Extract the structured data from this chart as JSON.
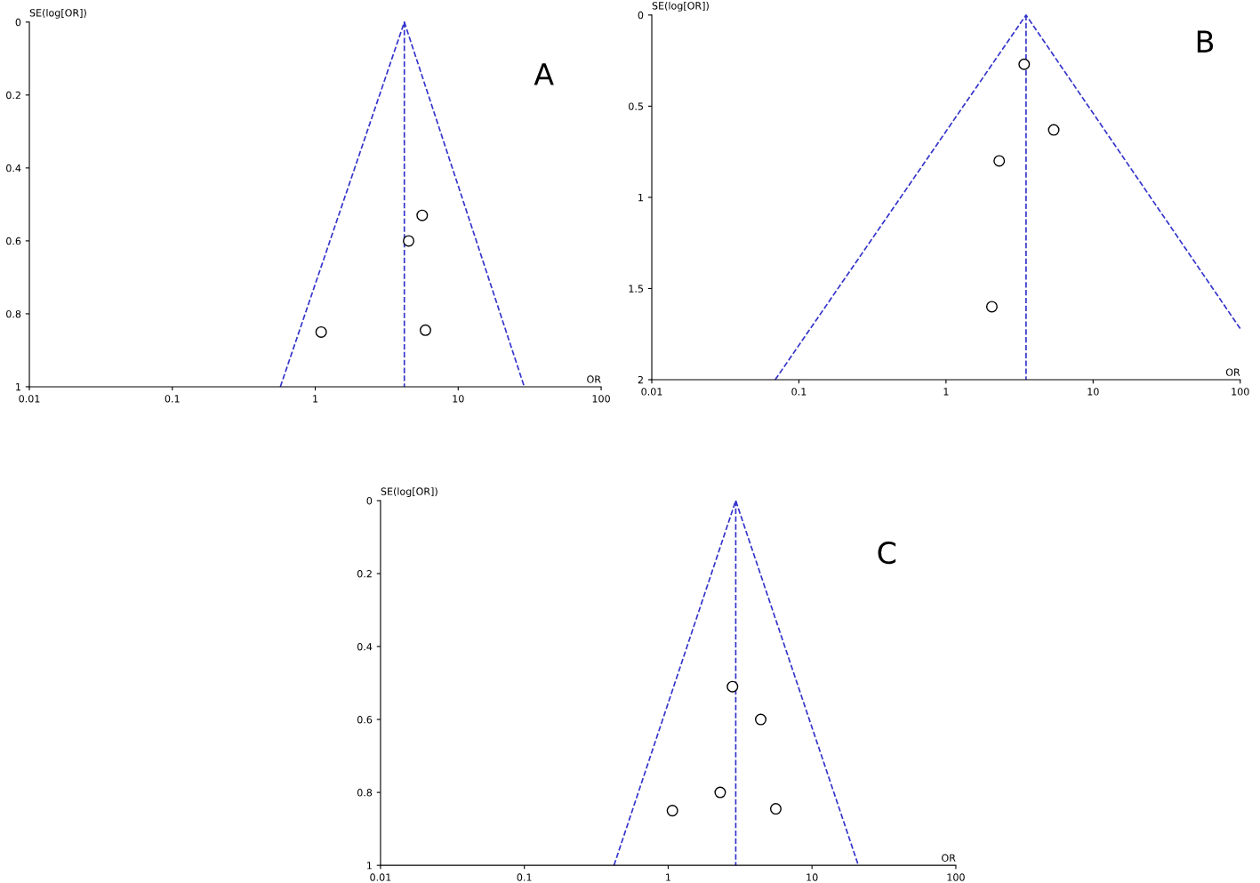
{
  "chart_data": [
    {
      "type": "scatter",
      "xlabel": "OR",
      "ylabel": "SE(log[OR])",
      "annotations": [
        "A"
      ],
      "log": "x",
      "grid": false,
      "legend": false,
      "xlim": [
        0.01,
        100
      ],
      "xticks": [
        0.01,
        0.1,
        1,
        10,
        100
      ],
      "ylim": [
        1,
        0
      ],
      "yticks": [
        0,
        0.2,
        0.4,
        0.6,
        0.8,
        1
      ],
      "series": [
        {
          "type": "line",
          "color": "#3333cc",
          "line_style": "dashed",
          "x": [
            0.57,
            4.2,
            29
          ],
          "values": [
            1,
            0,
            1
          ]
        },
        {
          "type": "line",
          "color": "#3333cc",
          "line_style": "dashed",
          "x": [
            4.2,
            4.2
          ],
          "values": [
            0,
            1
          ]
        },
        {
          "color": "#000000",
          "marker": "circle",
          "x": [
            5.6,
            4.5,
            1.1,
            5.9
          ],
          "values": [
            0.53,
            0.6,
            0.85,
            0.845
          ]
        }
      ]
    },
    {
      "type": "scatter",
      "xlabel": "OR",
      "ylabel": "SE(log[OR])",
      "annotations": [
        "B"
      ],
      "log": "x",
      "grid": false,
      "legend": false,
      "xlim": [
        0.01,
        100
      ],
      "xticks": [
        0.01,
        0.1,
        1,
        10,
        100
      ],
      "ylim": [
        2,
        0
      ],
      "yticks": [
        0,
        0.5,
        1,
        1.5,
        2
      ],
      "series": [
        {
          "type": "line",
          "color": "#3333cc",
          "line_style": "dashed",
          "x": [
            0.069,
            3.5,
            100
          ],
          "values": [
            2,
            0,
            1.72
          ]
        },
        {
          "type": "line",
          "color": "#3333cc",
          "line_style": "dashed",
          "x": [
            3.5,
            3.5
          ],
          "values": [
            0,
            2
          ]
        },
        {
          "color": "#000000",
          "marker": "circle",
          "x": [
            3.4,
            5.4,
            2.3,
            2.05
          ],
          "values": [
            0.27,
            0.63,
            0.8,
            1.6
          ]
        }
      ]
    },
    {
      "type": "scatter",
      "xlabel": "OR",
      "ylabel": "SE(log[OR])",
      "annotations": [
        "C"
      ],
      "log": "x",
      "grid": false,
      "legend": false,
      "xlim": [
        0.01,
        100
      ],
      "xticks": [
        0.01,
        0.1,
        1,
        10,
        100
      ],
      "ylim": [
        1,
        0
      ],
      "yticks": [
        0,
        0.2,
        0.4,
        0.6,
        0.8,
        1
      ],
      "series": [
        {
          "type": "line",
          "color": "#3333cc",
          "line_style": "dashed",
          "x": [
            0.42,
            2.95,
            21
          ],
          "values": [
            1,
            0,
            1
          ]
        },
        {
          "type": "line",
          "color": "#3333cc",
          "line_style": "dashed",
          "x": [
            2.95,
            2.95
          ],
          "values": [
            0,
            1
          ]
        },
        {
          "color": "#000000",
          "marker": "circle",
          "x": [
            2.8,
            4.4,
            2.3,
            1.07,
            5.6
          ],
          "values": [
            0.51,
            0.6,
            0.8,
            0.85,
            0.845
          ]
        }
      ]
    }
  ]
}
